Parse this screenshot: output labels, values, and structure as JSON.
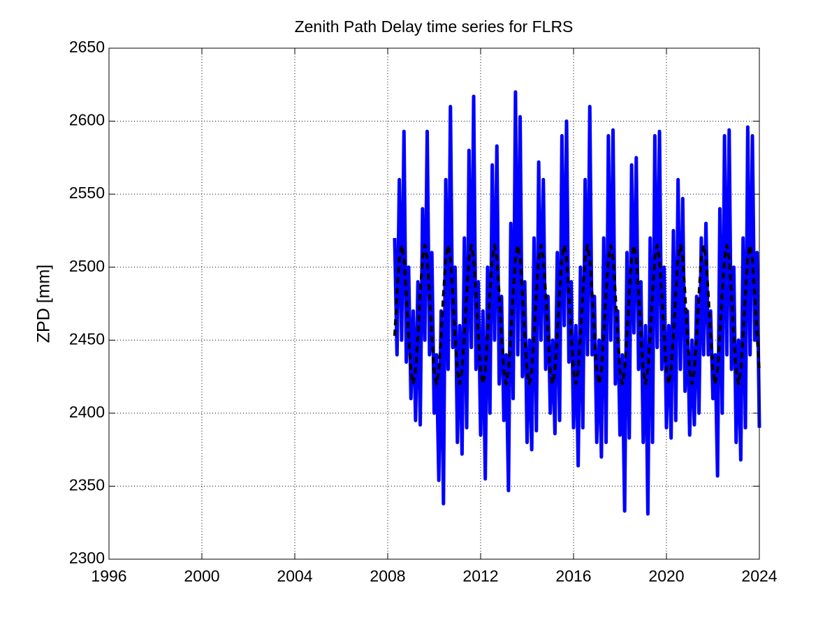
{
  "chart_data": {
    "type": "line",
    "title": "Zenith Path Delay time series for FLRS",
    "ylabel": "ZPD [mm]",
    "xlim": [
      1996,
      2024
    ],
    "xticks": [
      1996,
      2000,
      2004,
      2008,
      2012,
      2016,
      2020,
      2024
    ],
    "ylim": [
      2300,
      2650
    ],
    "yticks": [
      2300,
      2350,
      2400,
      2450,
      2500,
      2550,
      2600,
      2650
    ],
    "grid": true,
    "x": [
      2008.3,
      2008.4,
      2008.5,
      2008.6,
      2008.7,
      2008.8,
      2008.9,
      2009.0,
      2009.1,
      2009.2,
      2009.3,
      2009.4,
      2009.5,
      2009.6,
      2009.7,
      2009.8,
      2009.9,
      2010.0,
      2010.1,
      2010.2,
      2010.3,
      2010.4,
      2010.5,
      2010.6,
      2010.7,
      2010.8,
      2010.9,
      2011.0,
      2011.1,
      2011.2,
      2011.3,
      2011.4,
      2011.5,
      2011.6,
      2011.7,
      2011.8,
      2011.9,
      2012.0,
      2012.1,
      2012.2,
      2012.3,
      2012.4,
      2012.5,
      2012.6,
      2012.7,
      2012.8,
      2012.9,
      2013.0,
      2013.1,
      2013.2,
      2013.3,
      2013.4,
      2013.5,
      2013.6,
      2013.7,
      2013.8,
      2013.9,
      2014.0,
      2014.1,
      2014.2,
      2014.3,
      2014.4,
      2014.5,
      2014.6,
      2014.7,
      2014.8,
      2014.9,
      2015.0,
      2015.1,
      2015.2,
      2015.3,
      2015.4,
      2015.5,
      2015.6,
      2015.7,
      2015.8,
      2015.9,
      2016.0,
      2016.1,
      2016.2,
      2016.3,
      2016.4,
      2016.5,
      2016.6,
      2016.7,
      2016.8,
      2016.9,
      2017.0,
      2017.1,
      2017.2,
      2017.3,
      2017.4,
      2017.5,
      2017.6,
      2017.7,
      2017.8,
      2017.9,
      2018.0,
      2018.1,
      2018.2,
      2018.3,
      2018.4,
      2018.5,
      2018.6,
      2018.7,
      2018.8,
      2018.9,
      2019.0,
      2019.1,
      2019.2,
      2019.3,
      2019.4,
      2019.5,
      2019.6,
      2019.7,
      2019.8,
      2019.9,
      2020.0,
      2020.1,
      2020.2,
      2020.3,
      2020.4,
      2020.5,
      2020.6,
      2020.7,
      2020.8,
      2020.9,
      2021.0,
      2021.1,
      2021.2,
      2021.3,
      2021.4,
      2021.5,
      2021.6,
      2021.7,
      2021.8,
      2021.9,
      2022.0,
      2022.1,
      2022.2,
      2022.3,
      2022.4,
      2022.5,
      2022.6,
      2022.7,
      2022.8,
      2022.9,
      2023.0,
      2023.1,
      2023.2,
      2023.3,
      2023.4,
      2023.5,
      2023.6,
      2023.7,
      2023.8,
      2023.9,
      2024.0,
      2024.1,
      2024.2
    ],
    "series": [
      {
        "color": "#0000ff",
        "style": "solid",
        "width": 5,
        "values": [
          2520,
          2440,
          2560,
          2450,
          2593,
          2435,
          2500,
          2410,
          2470,
          2395,
          2490,
          2392,
          2540,
          2450,
          2593,
          2440,
          2510,
          2400,
          2440,
          2354,
          2470,
          2338,
          2560,
          2430,
          2610,
          2445,
          2500,
          2380,
          2460,
          2372,
          2520,
          2390,
          2580,
          2445,
          2617,
          2430,
          2490,
          2385,
          2470,
          2355,
          2500,
          2400,
          2570,
          2450,
          2583,
          2420,
          2480,
          2395,
          2440,
          2347,
          2530,
          2410,
          2620,
          2440,
          2603,
          2425,
          2490,
          2380,
          2450,
          2375,
          2520,
          2388,
          2572,
          2450,
          2560,
          2430,
          2480,
          2400,
          2450,
          2386,
          2510,
          2395,
          2590,
          2460,
          2600,
          2435,
          2490,
          2390,
          2460,
          2364,
          2500,
          2390,
          2560,
          2440,
          2610,
          2440,
          2480,
          2380,
          2450,
          2370,
          2520,
          2380,
          2590,
          2450,
          2594,
          2420,
          2470,
          2385,
          2440,
          2333,
          2510,
          2383,
          2570,
          2455,
          2575,
          2430,
          2490,
          2380,
          2460,
          2331,
          2520,
          2380,
          2590,
          2445,
          2593,
          2430,
          2500,
          2390,
          2460,
          2383,
          2525,
          2395,
          2560,
          2430,
          2547,
          2415,
          2470,
          2385,
          2450,
          2392,
          2480,
          2400,
          2520,
          2440,
          2530,
          2440,
          2470,
          2410,
          2440,
          2357,
          2540,
          2400,
          2590,
          2440,
          2594,
          2430,
          2500,
          2380,
          2450,
          2368,
          2520,
          2390,
          2596,
          2440,
          2590,
          2450,
          2510,
          2390,
          null,
          null
        ]
      },
      {
        "color": "#000000",
        "style": "dashed",
        "width": 4,
        "values": [
          2453,
          2482,
          2506,
          2515,
          2506,
          2482,
          2453,
          2429,
          2420,
          2429,
          2453,
          2482,
          2506,
          2515,
          2506,
          2482,
          2453,
          2429,
          2420,
          2429,
          2453,
          2482,
          2506,
          2515,
          2506,
          2482,
          2453,
          2429,
          2420,
          2429,
          2453,
          2482,
          2506,
          2515,
          2506,
          2482,
          2453,
          2429,
          2420,
          2429,
          2453,
          2482,
          2506,
          2515,
          2506,
          2482,
          2453,
          2429,
          2420,
          2429,
          2453,
          2482,
          2506,
          2515,
          2506,
          2482,
          2453,
          2429,
          2420,
          2429,
          2453,
          2482,
          2506,
          2515,
          2506,
          2482,
          2453,
          2429,
          2420,
          2429,
          2453,
          2482,
          2506,
          2515,
          2506,
          2482,
          2453,
          2429,
          2420,
          2429,
          2453,
          2482,
          2506,
          2515,
          2506,
          2482,
          2453,
          2429,
          2420,
          2429,
          2453,
          2482,
          2506,
          2515,
          2506,
          2482,
          2453,
          2429,
          2420,
          2429,
          2453,
          2482,
          2506,
          2515,
          2506,
          2482,
          2453,
          2429,
          2420,
          2429,
          2453,
          2482,
          2506,
          2515,
          2506,
          2482,
          2453,
          2429,
          2420,
          2429,
          2453,
          2482,
          2506,
          2515,
          2506,
          2482,
          2453,
          2429,
          2420,
          2429,
          2453,
          2482,
          2506,
          2515,
          2506,
          2482,
          2453,
          2429,
          2420,
          2429,
          2453,
          2482,
          2506,
          2515,
          2506,
          2482,
          2453,
          2429,
          2420,
          2429,
          2453,
          2482,
          2506,
          2515,
          2506,
          2482,
          2453,
          2429,
          null,
          null
        ]
      }
    ]
  }
}
